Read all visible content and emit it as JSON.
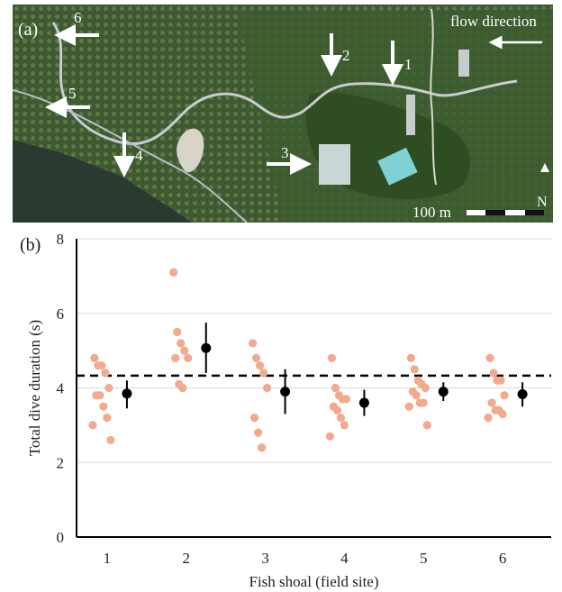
{
  "panel_a": {
    "label": "(a)",
    "flow_label": "flow direction",
    "scale_label": "100 m",
    "north_label": "N",
    "site_labels": [
      "1",
      "2",
      "3",
      "4",
      "5",
      "6"
    ]
  },
  "panel_b": {
    "label": "(b)"
  },
  "chart_data": {
    "type": "scatter",
    "title": "",
    "xlabel": "Fish shoal (field site)",
    "ylabel": "Total dive duration (s)",
    "categories": [
      "1",
      "2",
      "3",
      "4",
      "5",
      "6"
    ],
    "ylim": [
      0,
      8
    ],
    "yticks": [
      0,
      2,
      4,
      6,
      8
    ],
    "grid": true,
    "reference_line": 4.33,
    "colors": {
      "points": "#f2a98c",
      "mean": "#000000",
      "grid": "#d9d9d9"
    },
    "individual_points": [
      [
        4.8,
        4.6,
        4.6,
        4.4,
        4.0,
        3.8,
        3.8,
        3.5,
        3.2,
        3.0,
        2.6
      ],
      [
        7.1,
        5.5,
        5.2,
        5.0,
        4.8,
        4.8,
        4.1,
        4.0
      ],
      [
        5.2,
        4.8,
        4.6,
        4.4,
        4.0,
        3.2,
        2.8,
        2.4
      ],
      [
        4.8,
        4.0,
        3.8,
        3.7,
        3.7,
        3.5,
        3.4,
        3.2,
        3.0,
        2.7
      ],
      [
        4.8,
        4.5,
        4.2,
        4.1,
        4.0,
        3.9,
        3.8,
        3.6,
        3.6,
        3.5,
        3.0
      ],
      [
        4.8,
        4.4,
        4.2,
        4.2,
        3.8,
        3.6,
        3.4,
        3.4,
        3.3,
        3.2
      ]
    ],
    "means": [
      3.85,
      5.07,
      3.9,
      3.6,
      3.9,
      3.83
    ],
    "error_low": [
      3.45,
      4.4,
      3.3,
      3.25,
      3.65,
      3.5
    ],
    "error_high": [
      4.2,
      5.75,
      4.5,
      3.95,
      4.15,
      4.15
    ]
  }
}
